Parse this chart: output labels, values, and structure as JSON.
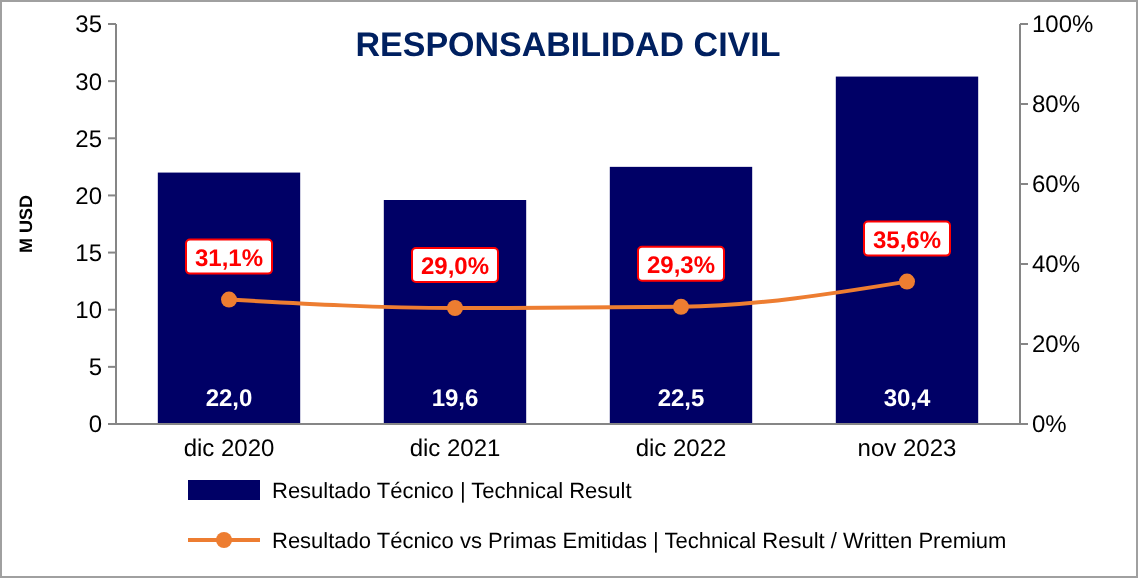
{
  "chart_data": {
    "type": "bar",
    "title": "RESPONSABILIDAD CIVIL",
    "ylabel": "M USD",
    "categories": [
      "dic 2020",
      "dic 2021",
      "dic 2022",
      "nov 2023"
    ],
    "series": [
      {
        "name": "Resultado Técnico | Technical Result",
        "color": "#000066",
        "values": [
          22.0,
          19.6,
          22.5,
          30.4
        ],
        "value_labels": [
          "22,0",
          "19,6",
          "22,5",
          "30,4"
        ]
      },
      {
        "name": "Resultado Técnico vs Primas Emitidas | Technical Result / Written Premium",
        "type": "line",
        "axis": "y2",
        "color": "#ed7d31",
        "marker": "circle",
        "values": [
          31.1,
          29.0,
          29.3,
          35.6
        ],
        "value_labels": [
          "31,1%",
          "29,0%",
          "29,3%",
          "35,6%"
        ]
      }
    ],
    "ylim": [
      0,
      35
    ],
    "yticks": [
      0,
      5,
      10,
      15,
      20,
      25,
      30,
      35
    ],
    "y2lim": [
      0,
      100
    ],
    "y2ticks": [
      {
        "value": 0,
        "label": "0%"
      },
      {
        "value": 20,
        "label": "20%"
      },
      {
        "value": 40,
        "label": "40%"
      },
      {
        "value": 60,
        "label": "60%"
      },
      {
        "value": 80,
        "label": "80%"
      },
      {
        "value": 100,
        "label": "100%"
      }
    ],
    "grid": false,
    "legend": "bottom"
  }
}
